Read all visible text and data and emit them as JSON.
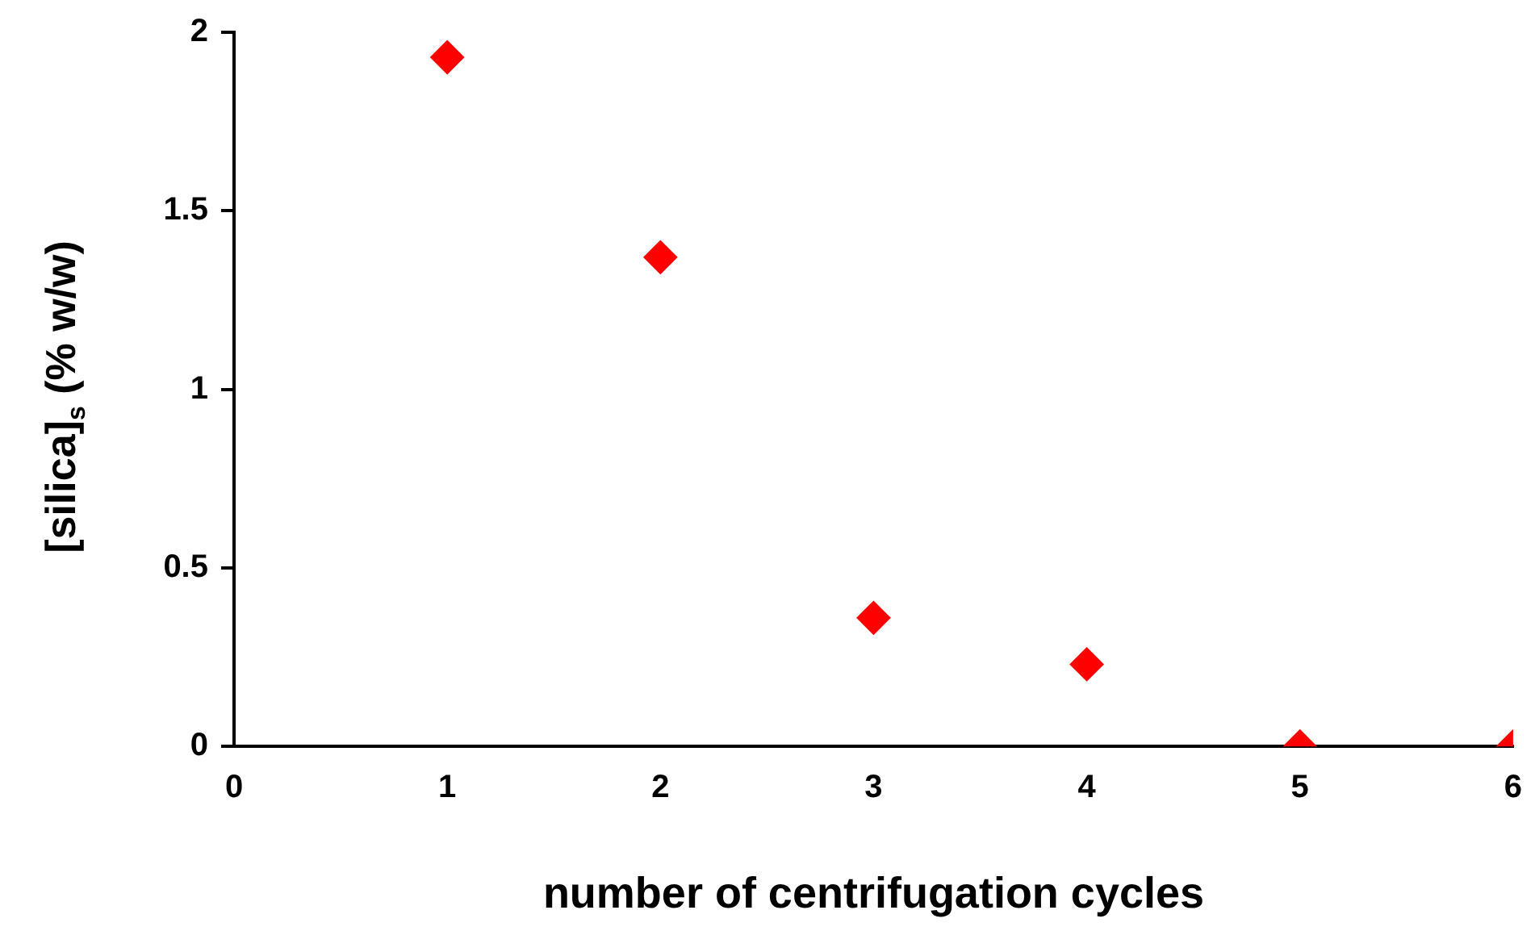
{
  "chart_data": {
    "type": "scatter",
    "xlabel": "number of centrifugation cycles",
    "ylabel": "[silica]$_{s}$ (% w/w)",
    "x": [
      1,
      2,
      3,
      4,
      5,
      6
    ],
    "values": [
      1.93,
      1.37,
      0.36,
      0.23,
      0,
      0
    ],
    "color": "#ff0000",
    "marker": "diamond",
    "xlim": [
      0,
      6
    ],
    "xticks": [
      0,
      1,
      2,
      3,
      4,
      5,
      6
    ],
    "ylim": [
      0,
      2
    ],
    "yticks": [
      0,
      0.5,
      1,
      1.5,
      2
    ]
  }
}
